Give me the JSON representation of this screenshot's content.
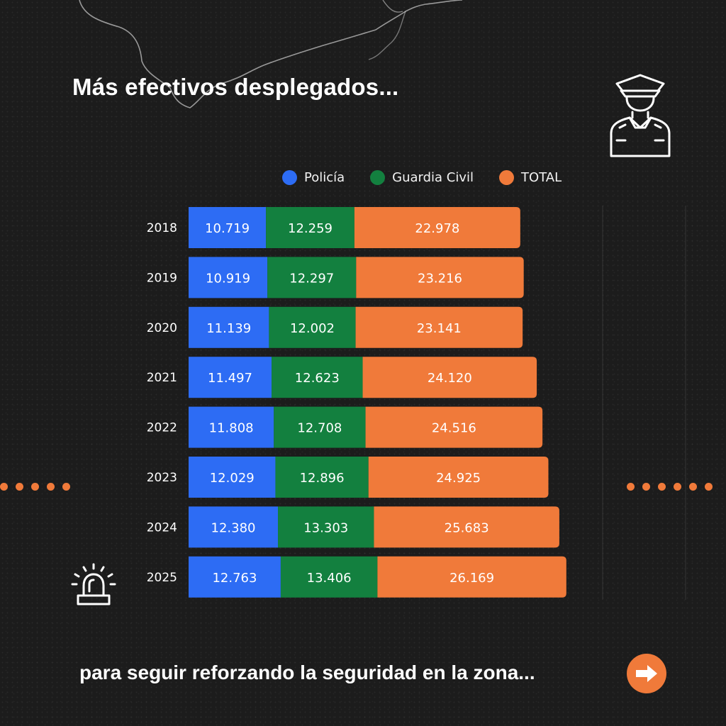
{
  "headline": "Más efectivos desplegados...",
  "footer": "para seguir reforzando la seguridad en la zona...",
  "icons": {
    "officer": "police-officer-icon",
    "siren": "siren-icon",
    "next": "arrow-right-icon"
  },
  "colors": {
    "background": "#1c1c1c",
    "policia": "#2d6cf4",
    "guardia_civil": "#13803f",
    "total": "#f07a3a",
    "text": "#ffffff"
  },
  "chart_data": {
    "type": "bar",
    "orientation": "horizontal",
    "stacked": true,
    "title": "Más efectivos desplegados...",
    "categories": [
      "2018",
      "2019",
      "2020",
      "2021",
      "2022",
      "2023",
      "2024",
      "2025"
    ],
    "series": [
      {
        "name": "Policía",
        "color": "#2d6cf4",
        "values": [
          10719,
          10919,
          11139,
          11497,
          11808,
          12029,
          12380,
          12763
        ],
        "labels": [
          "10.719",
          "10.919",
          "11.139",
          "11.497",
          "11.808",
          "12.029",
          "12.380",
          "12.763"
        ]
      },
      {
        "name": "Guardia Civil",
        "color": "#13803f",
        "values": [
          12259,
          12297,
          12002,
          12623,
          12708,
          12896,
          13303,
          13406
        ],
        "labels": [
          "12.259",
          "12.297",
          "12.002",
          "12.623",
          "12.708",
          "12.896",
          "13.303",
          "13.406"
        ]
      },
      {
        "name": "TOTAL",
        "color": "#f07a3a",
        "values": [
          22978,
          23216,
          23141,
          24120,
          24516,
          24925,
          25683,
          26169
        ],
        "labels": [
          "22.978",
          "23.216",
          "23.141",
          "24.120",
          "24.516",
          "24.925",
          "25.683",
          "26.169"
        ]
      }
    ],
    "legend_position": "top",
    "xlim": [
      0,
      60000
    ],
    "grid": false
  }
}
